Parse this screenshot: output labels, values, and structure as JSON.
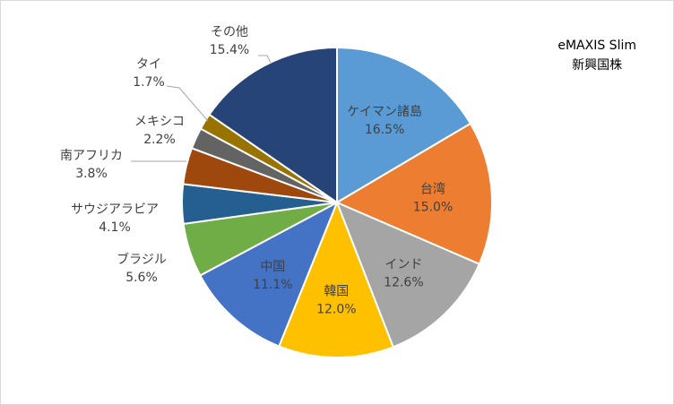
{
  "chart_data": {
    "type": "pie",
    "title_lines": [
      "eMAXIS Slim",
      "新興国株"
    ],
    "slices": [
      {
        "label": "ケイマン諸島",
        "value": 16.5,
        "value_label": "16.5%",
        "color": "#5b9bd5",
        "label_pos": "inside"
      },
      {
        "label": "台湾",
        "value": 15.0,
        "value_label": "15.0%",
        "color": "#ed7d31",
        "label_pos": "inside"
      },
      {
        "label": "インド",
        "value": 12.6,
        "value_label": "12.6%",
        "color": "#a5a5a5",
        "label_pos": "inside"
      },
      {
        "label": "韓国",
        "value": 12.0,
        "value_label": "12.0%",
        "color": "#ffc000",
        "label_pos": "inside"
      },
      {
        "label": "中国",
        "value": 11.1,
        "value_label": "11.1%",
        "color": "#4472c4",
        "label_pos": "inside"
      },
      {
        "label": "ブラジル",
        "value": 5.6,
        "value_label": "5.6%",
        "color": "#70ad47",
        "label_pos": "outside"
      },
      {
        "label": "サウジアラビア",
        "value": 4.1,
        "value_label": "4.1%",
        "color": "#255e91",
        "label_pos": "outside"
      },
      {
        "label": "南アフリカ",
        "value": 3.8,
        "value_label": "3.8%",
        "color": "#9e480e",
        "label_pos": "outside"
      },
      {
        "label": "メキシコ",
        "value": 2.2,
        "value_label": "2.2%",
        "color": "#636363",
        "label_pos": "outside"
      },
      {
        "label": "タイ",
        "value": 1.7,
        "value_label": "1.7%",
        "color": "#997300",
        "label_pos": "outside"
      },
      {
        "label": "その他",
        "value": 15.4,
        "value_label": "15.4%",
        "color": "#264478",
        "label_pos": "outside"
      }
    ]
  }
}
